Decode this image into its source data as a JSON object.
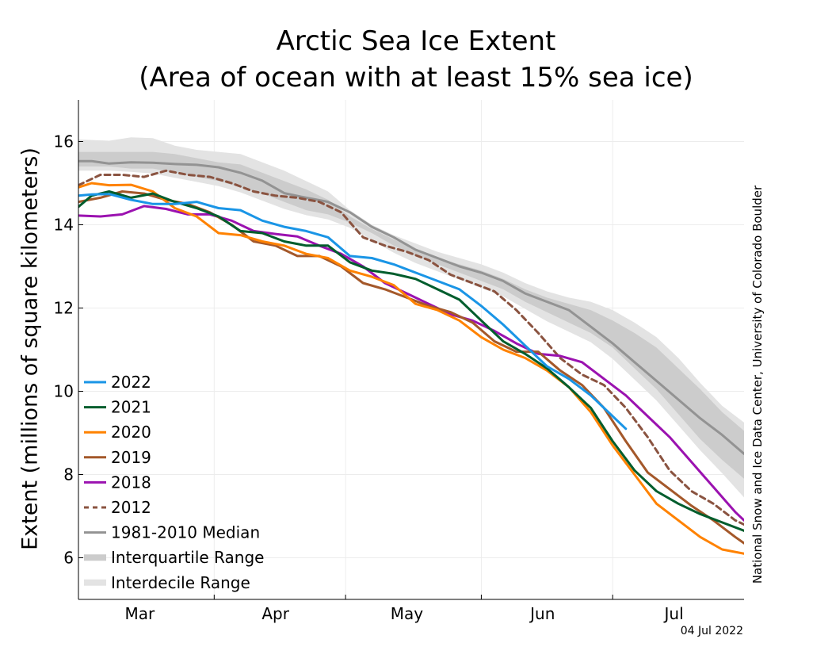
{
  "chart_data": {
    "type": "line",
    "title": "Arctic Sea Ice Extent",
    "subtitle": "(Area of ocean with at least 15% sea ice)",
    "ylabel": "Extent (millions of square kilometers)",
    "xlabel": "",
    "credit": "National Snow and Ice Data Center, University of Colorado Boulder",
    "date_stamp": "04 Jul 2022",
    "x_unit": "day of year",
    "xlim": [
      45,
      197
    ],
    "ylim": [
      5,
      17
    ],
    "yticks": [
      6,
      8,
      10,
      12,
      14,
      16
    ],
    "month_labels": [
      {
        "label": "Mar",
        "day": 59
      },
      {
        "label": "Apr",
        "day": 90
      },
      {
        "label": "May",
        "day": 120
      },
      {
        "label": "Jun",
        "day": 151
      },
      {
        "label": "Jul",
        "day": 181
      }
    ],
    "month_boundaries": [
      76,
      106,
      137,
      167
    ],
    "grid": true,
    "legend_position": "bottom-left",
    "interdecile": {
      "name": "Interdecile Range",
      "color": "#e3e3e3",
      "x": [
        45,
        52,
        57,
        62,
        67,
        72,
        77,
        82,
        87,
        92,
        97,
        102,
        107,
        112,
        117,
        122,
        127,
        132,
        137,
        142,
        147,
        152,
        157,
        162,
        167,
        172,
        177,
        182,
        187,
        192,
        197
      ],
      "lower": [
        15.3,
        15.3,
        15.27,
        15.23,
        15.13,
        15.03,
        14.93,
        14.78,
        14.58,
        14.38,
        14.23,
        14.13,
        13.93,
        13.63,
        13.33,
        13.08,
        12.88,
        12.68,
        12.48,
        12.28,
        11.98,
        11.68,
        11.43,
        11.18,
        10.78,
        10.28,
        9.78,
        9.18,
        8.58,
        8.03,
        7.45
      ],
      "upper": [
        16.05,
        16.02,
        16.1,
        16.08,
        15.9,
        15.8,
        15.75,
        15.7,
        15.5,
        15.3,
        15.05,
        14.8,
        14.35,
        14.0,
        13.75,
        13.55,
        13.35,
        13.2,
        13.05,
        12.85,
        12.6,
        12.4,
        12.25,
        12.15,
        11.95,
        11.65,
        11.3,
        10.8,
        10.2,
        9.65,
        9.25
      ]
    },
    "interquartile": {
      "name": "Interquartile Range",
      "color": "#cccccc",
      "x": [
        45,
        52,
        57,
        62,
        67,
        72,
        77,
        82,
        87,
        92,
        97,
        102,
        107,
        112,
        117,
        122,
        127,
        132,
        137,
        142,
        147,
        152,
        157,
        162,
        167,
        172,
        177,
        182,
        187,
        192,
        197
      ],
      "lower": [
        15.4,
        15.4,
        15.35,
        15.35,
        15.25,
        15.15,
        15.05,
        14.9,
        14.75,
        14.55,
        14.35,
        14.25,
        14.05,
        13.8,
        13.5,
        13.25,
        13.05,
        12.85,
        12.65,
        12.45,
        12.15,
        11.9,
        11.65,
        11.4,
        11.05,
        10.55,
        10.05,
        9.45,
        8.85,
        8.35,
        7.9
      ],
      "upper": [
        15.75,
        15.75,
        15.75,
        15.75,
        15.7,
        15.6,
        15.5,
        15.45,
        15.25,
        15.05,
        14.85,
        14.6,
        14.2,
        13.9,
        13.65,
        13.4,
        13.2,
        13.05,
        12.9,
        12.7,
        12.45,
        12.25,
        12.1,
        11.95,
        11.7,
        11.4,
        11.05,
        10.55,
        10.05,
        9.5,
        9.05
      ]
    },
    "series": [
      {
        "name": "1981-2010 Median",
        "color": "#939393",
        "dash": false,
        "x": [
          45,
          48,
          52,
          57,
          62,
          67,
          72,
          77,
          82,
          87,
          92,
          97,
          102,
          107,
          112,
          117,
          122,
          127,
          132,
          137,
          142,
          147,
          152,
          157,
          162,
          167,
          172,
          177,
          182,
          187,
          192,
          197
        ],
        "y": [
          15.53,
          15.53,
          15.47,
          15.5,
          15.49,
          15.46,
          15.44,
          15.38,
          15.25,
          15.06,
          14.76,
          14.65,
          14.55,
          14.3,
          13.95,
          13.7,
          13.4,
          13.2,
          13.0,
          12.85,
          12.65,
          12.35,
          12.15,
          11.95,
          11.55,
          11.15,
          10.7,
          10.25,
          9.8,
          9.35,
          8.95,
          8.5
        ]
      },
      {
        "name": "Interquartile Range",
        "color": "#cccccc",
        "legend_only": true
      },
      {
        "name": "Interdecile Range",
        "color": "#e3e3e3",
        "legend_only": true
      },
      {
        "name": "2012",
        "color": "#8a5340",
        "dash": true,
        "x": [
          45,
          50,
          55,
          60,
          65,
          70,
          75,
          80,
          85,
          90,
          95,
          100,
          105,
          110,
          115,
          120,
          125,
          130,
          135,
          140,
          145,
          150,
          155,
          160,
          165,
          170,
          175,
          180,
          185,
          190,
          195,
          197
        ],
        "y": [
          14.95,
          15.2,
          15.2,
          15.15,
          15.3,
          15.2,
          15.15,
          15.0,
          14.8,
          14.7,
          14.65,
          14.55,
          14.3,
          13.7,
          13.5,
          13.35,
          13.15,
          12.8,
          12.6,
          12.4,
          11.95,
          11.4,
          10.8,
          10.4,
          10.15,
          9.6,
          8.9,
          8.1,
          7.6,
          7.3,
          6.9,
          6.8
        ]
      },
      {
        "name": "2018",
        "color": "#9b12b0",
        "dash": false,
        "x": [
          45,
          50,
          55,
          60,
          65,
          70,
          75,
          80,
          85,
          90,
          95,
          100,
          105,
          110,
          115,
          120,
          125,
          130,
          135,
          140,
          145,
          150,
          155,
          160,
          165,
          170,
          175,
          180,
          185,
          190,
          195,
          197
        ],
        "y": [
          14.22,
          14.2,
          14.25,
          14.45,
          14.38,
          14.25,
          14.25,
          14.1,
          13.85,
          13.78,
          13.72,
          13.5,
          13.3,
          13.0,
          12.6,
          12.35,
          12.1,
          11.85,
          11.7,
          11.45,
          11.15,
          10.9,
          10.85,
          10.7,
          10.3,
          9.9,
          9.4,
          8.9,
          8.3,
          7.7,
          7.1,
          6.9
        ]
      },
      {
        "name": "2019",
        "color": "#a4582a",
        "dash": false,
        "x": [
          45,
          50,
          55,
          60,
          65,
          70,
          75,
          80,
          85,
          90,
          95,
          100,
          105,
          110,
          115,
          120,
          125,
          130,
          135,
          140,
          145,
          150,
          155,
          160,
          165,
          170,
          175,
          180,
          185,
          190,
          195,
          197
        ],
        "y": [
          14.55,
          14.65,
          14.8,
          14.75,
          14.6,
          14.5,
          14.3,
          14.0,
          13.6,
          13.5,
          13.25,
          13.25,
          13.0,
          12.6,
          12.45,
          12.25,
          12.05,
          11.9,
          11.65,
          11.2,
          10.95,
          10.95,
          10.5,
          10.15,
          9.6,
          8.8,
          8.05,
          7.65,
          7.25,
          6.9,
          6.5,
          6.35
        ]
      },
      {
        "name": "2020",
        "color": "#ff8200",
        "dash": false,
        "x": [
          45,
          48,
          52,
          57,
          62,
          67,
          72,
          77,
          82,
          87,
          92,
          97,
          102,
          107,
          112,
          117,
          122,
          127,
          132,
          137,
          142,
          147,
          152,
          157,
          162,
          167,
          172,
          177,
          182,
          187,
          192,
          197
        ],
        "y": [
          14.9,
          15.0,
          14.95,
          14.96,
          14.8,
          14.4,
          14.2,
          13.8,
          13.75,
          13.6,
          13.5,
          13.3,
          13.2,
          12.9,
          12.75,
          12.55,
          12.1,
          11.95,
          11.7,
          11.3,
          11.0,
          10.8,
          10.5,
          10.1,
          9.5,
          8.7,
          8.0,
          7.3,
          6.9,
          6.5,
          6.2,
          6.1
        ]
      },
      {
        "name": "2021",
        "color": "#005d2d",
        "dash": false,
        "x": [
          45,
          48,
          52,
          57,
          62,
          67,
          72,
          77,
          82,
          87,
          92,
          97,
          102,
          107,
          112,
          117,
          122,
          127,
          132,
          137,
          142,
          147,
          152,
          157,
          162,
          167,
          172,
          177,
          182,
          187,
          192,
          197
        ],
        "y": [
          14.43,
          14.7,
          14.8,
          14.65,
          14.75,
          14.55,
          14.4,
          14.2,
          13.85,
          13.8,
          13.6,
          13.5,
          13.5,
          13.1,
          12.9,
          12.82,
          12.7,
          12.45,
          12.2,
          11.7,
          11.2,
          10.9,
          10.55,
          10.1,
          9.6,
          8.8,
          8.1,
          7.6,
          7.3,
          7.05,
          6.85,
          6.65
        ]
      },
      {
        "name": "2022",
        "color": "#1a95e6",
        "dash": false,
        "x": [
          45,
          48,
          52,
          57,
          62,
          67,
          72,
          77,
          82,
          87,
          92,
          97,
          102,
          107,
          112,
          117,
          122,
          127,
          132,
          137,
          142,
          147,
          152,
          157,
          162,
          167,
          170
        ],
        "y": [
          14.7,
          14.73,
          14.74,
          14.6,
          14.5,
          14.5,
          14.55,
          14.4,
          14.35,
          14.1,
          13.95,
          13.85,
          13.7,
          13.25,
          13.2,
          13.05,
          12.85,
          12.65,
          12.45,
          12.05,
          11.6,
          11.1,
          10.6,
          10.3,
          9.9,
          9.4,
          9.1
        ]
      }
    ],
    "legend": [
      {
        "name": "2022",
        "color": "#1a95e6",
        "style": "solid"
      },
      {
        "name": "2021",
        "color": "#005d2d",
        "style": "solid"
      },
      {
        "name": "2020",
        "color": "#ff8200",
        "style": "solid"
      },
      {
        "name": "2019",
        "color": "#a4582a",
        "style": "solid"
      },
      {
        "name": "2018",
        "color": "#9b12b0",
        "style": "solid"
      },
      {
        "name": "2012",
        "color": "#8a5340",
        "style": "dashed"
      },
      {
        "name": "1981-2010 Median",
        "color": "#939393",
        "style": "solid"
      },
      {
        "name": "Interquartile Range",
        "color": "#cccccc",
        "style": "band"
      },
      {
        "name": "Interdecile Range",
        "color": "#e3e3e3",
        "style": "band"
      }
    ]
  }
}
